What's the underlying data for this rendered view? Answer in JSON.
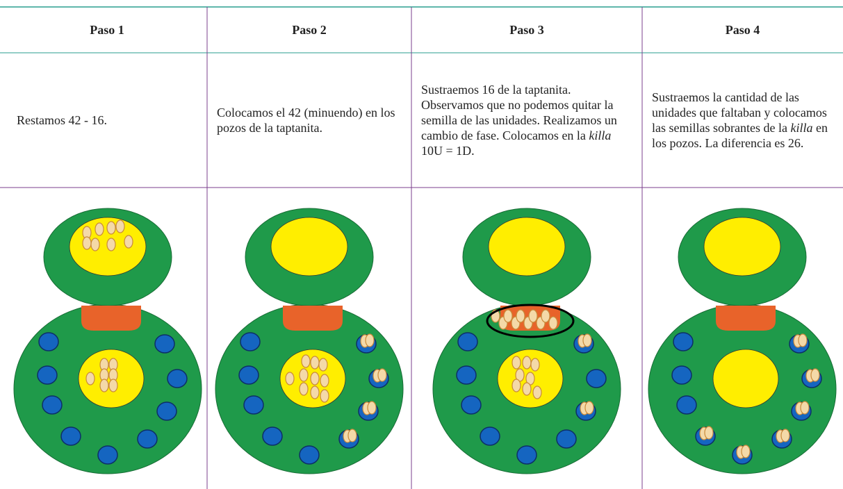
{
  "table": {
    "header": [
      "Paso 1",
      "Paso 2",
      "Paso 3",
      "Paso 4"
    ],
    "rows": [
      [
        [
          "Restamos 42 - 16."
        ],
        [
          "Colocamos el 42 (minuendo) en los pozos de la taptanita."
        ],
        [
          "Sustraemos 16 de la taptanita. Observamos que no podemos quitar la semilla de las unidades. Realizamos un cambio de fase. Colocamos en la ",
          "killa",
          " 10U = 1D."
        ],
        [
          "Sustraemos la cantidad de las unidades que faltaban y colocamos las semillas sobrantes de la ",
          "killa",
          " en los pozos. La diferencia es 26."
        ]
      ]
    ]
  }
}
